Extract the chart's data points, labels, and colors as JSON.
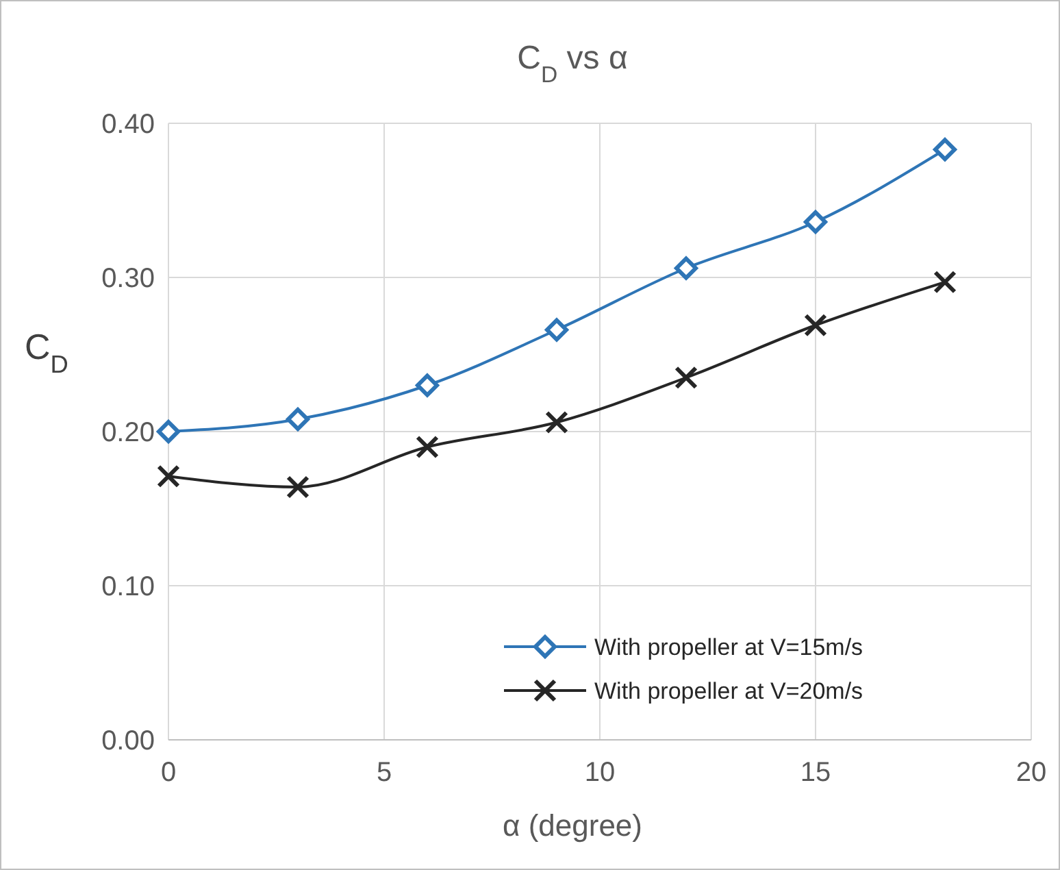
{
  "chart_data": {
    "type": "line",
    "title": "C$_{D}$ vs α",
    "xlabel": "α (degree)",
    "ylabel": "C$_{D}$",
    "x": [
      0,
      3,
      6,
      9,
      12,
      15,
      18
    ],
    "series": [
      {
        "name": "With propeller at V=15m/s",
        "color": "#2e75b6",
        "marker": "diamond",
        "values": [
          0.2,
          0.208,
          0.23,
          0.266,
          0.306,
          0.336,
          0.383
        ]
      },
      {
        "name": "With propeller at V=20m/s",
        "color": "#262626",
        "marker": "cross",
        "values": [
          0.171,
          0.164,
          0.19,
          0.206,
          0.235,
          0.269,
          0.297
        ]
      }
    ],
    "xlim": [
      0,
      20
    ],
    "xticks": [
      0,
      5,
      10,
      15,
      20
    ],
    "ylim": [
      0,
      0.4
    ],
    "yticks": [
      {
        "value": 0,
        "label": "0.00"
      },
      {
        "value": 0.1,
        "label": "0.10"
      },
      {
        "value": 0.2,
        "label": "0.20"
      },
      {
        "value": 0.3,
        "label": "0.30"
      },
      {
        "value": 0.4,
        "label": "0.40"
      }
    ],
    "grid": true,
    "legend": "bottom right"
  }
}
